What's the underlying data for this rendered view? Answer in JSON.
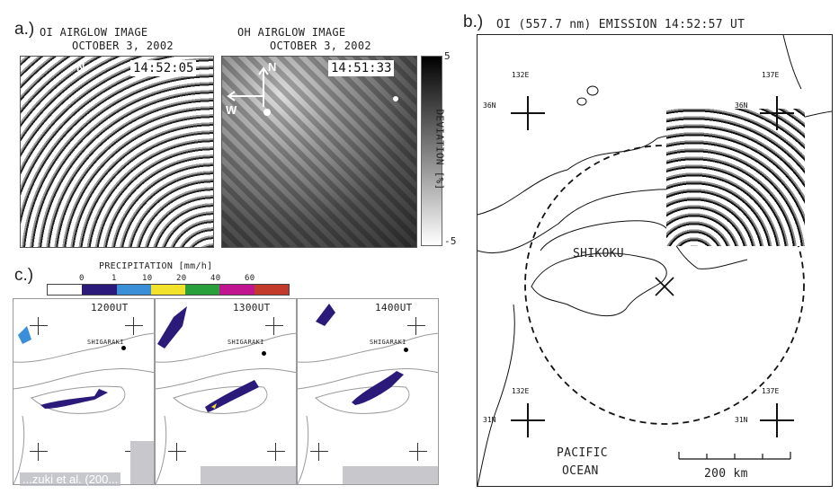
{
  "panel_a": {
    "label": "a.)",
    "oi_title": "OI AIRGLOW IMAGE",
    "oi_date": "OCTOBER 3, 2002",
    "oi_time": "14:52:05",
    "oi_north": "N",
    "oh_title": "OH AIRGLOW IMAGE",
    "oh_date": "OCTOBER 3, 2002",
    "oh_time": "14:51:33",
    "oh_north": "N",
    "oh_west": "W",
    "colorbar_label": "DEVIATION [%]",
    "colorbar_max": "5",
    "colorbar_min": "-5"
  },
  "panel_b": {
    "label": "b.)",
    "title": "OI (557.7 nm) EMISSION 14:52:57 UT",
    "lon_132e_top": "132E",
    "lon_137e_top": "137E",
    "lat_36n_left": "36N",
    "lat_36n_right": "36N",
    "lon_132e_bottom": "132E",
    "lon_137e_bottom": "137E",
    "lat_31n_left": "31N",
    "lat_31n_right": "31N",
    "region": "SHIKOKU",
    "ocean_line1": "PACIFIC",
    "ocean_line2": "OCEAN",
    "scale": "200 km"
  },
  "panel_c": {
    "label": "c.)",
    "legend_title": "PRECIPITATION [mm/h]",
    "legend_ticks": [
      "0",
      "1",
      "10",
      "20",
      "40",
      "60"
    ],
    "legend_colors": [
      "#ffffff",
      "#2b1a7a",
      "#3a8fd8",
      "#f2e229",
      "#2aa03a",
      "#c0158f",
      "#c43a2a"
    ],
    "frames": [
      {
        "time": "1200UT",
        "place": "SHIGARAKI"
      },
      {
        "time": "1300UT",
        "place": "SHIGARAKI"
      },
      {
        "time": "1400UT",
        "place": "SHIGARAKI"
      }
    ],
    "citation": "...zuki et al. (200..."
  }
}
